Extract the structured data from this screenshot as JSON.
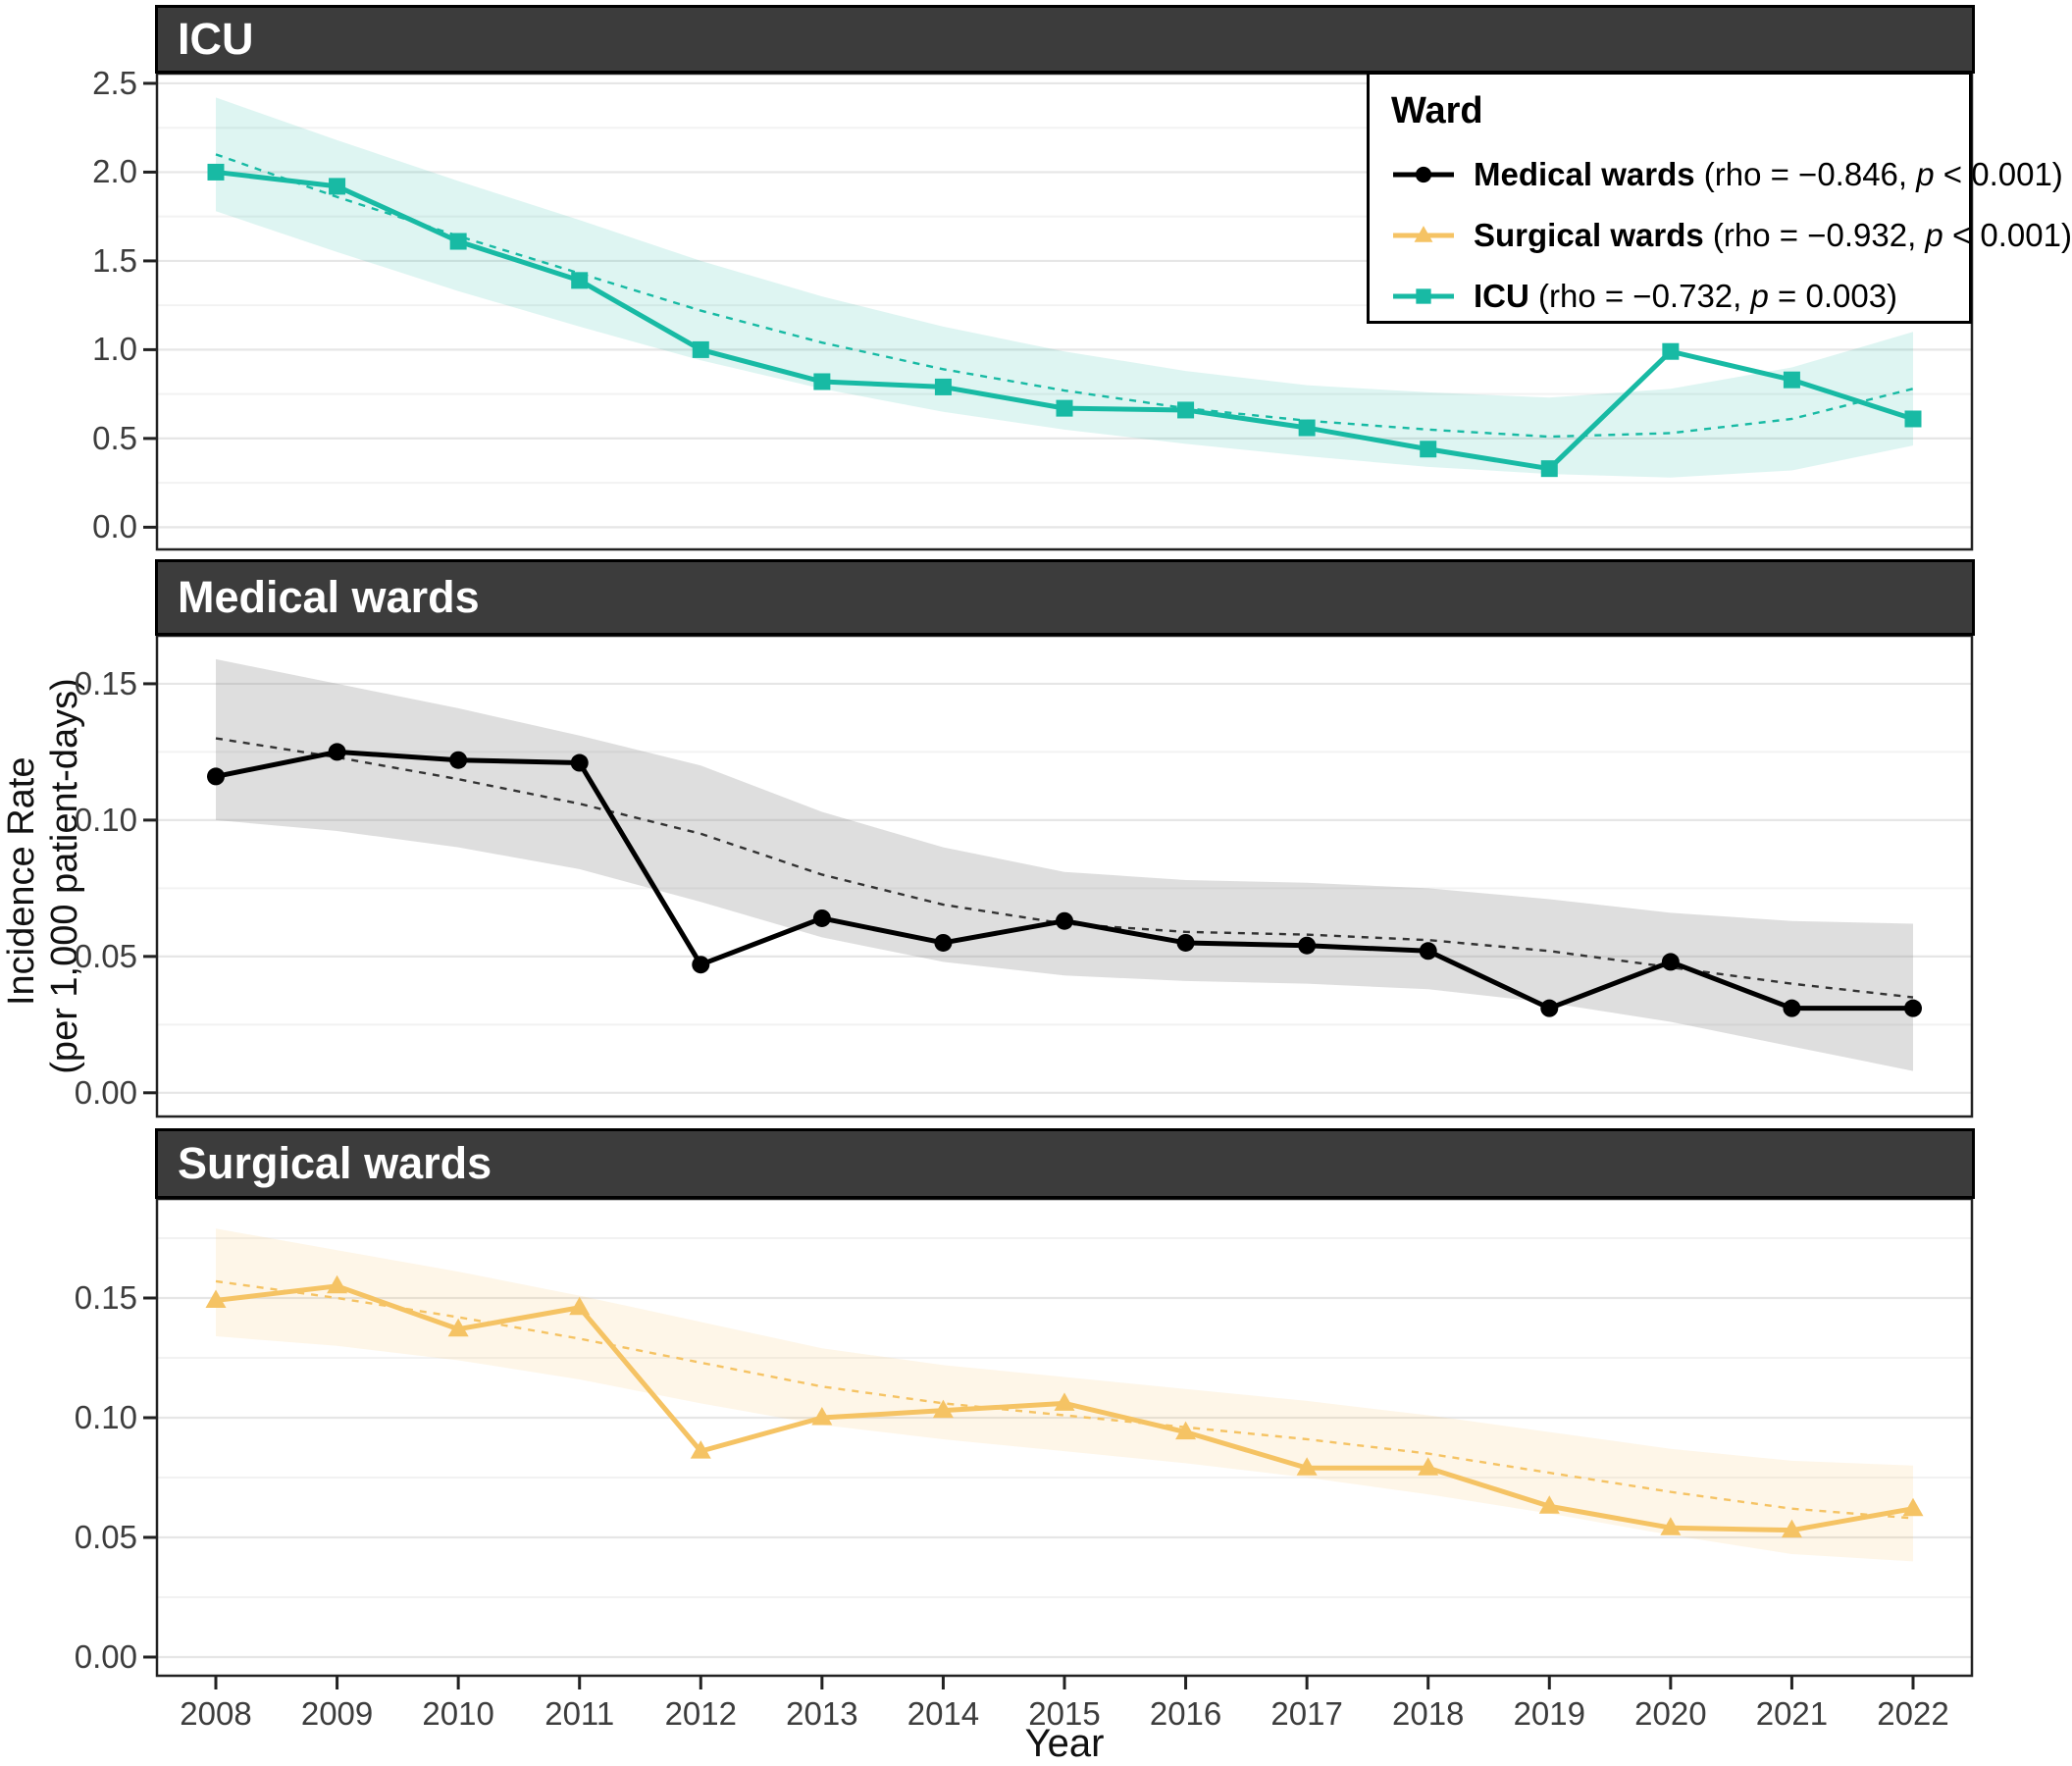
{
  "axis": {
    "x_label": "Year",
    "y_label_line1": "Incidence Rate",
    "y_label_line2": "(per 1,000 patient-days)"
  },
  "legend": {
    "title": "Ward",
    "items": [
      {
        "series_id": "medical",
        "label": "Medical wards",
        "pre": " (rho = −0.846, ",
        "p": "p",
        "post": " < 0.001)"
      },
      {
        "series_id": "surgical",
        "label": "Surgical wards",
        "pre": " (rho = −0.932, ",
        "p": "p",
        "post": " < 0.001)"
      },
      {
        "series_id": "icu",
        "label": "ICU",
        "pre": " (rho = −0.732, ",
        "p": "p",
        "post": " = 0.003)"
      }
    ]
  },
  "chart_data": [
    {
      "id": "icu",
      "type": "line",
      "title": "ICU",
      "color": "#18BAA4",
      "trend_color": "#18BAA4",
      "band_color": "#18BAA4",
      "band_opacity": 0.14,
      "marker": "square",
      "x": [
        2008,
        2009,
        2010,
        2011,
        2012,
        2013,
        2014,
        2015,
        2016,
        2017,
        2018,
        2019,
        2020,
        2021,
        2022
      ],
      "values": [
        2.0,
        1.92,
        1.61,
        1.39,
        1.0,
        0.82,
        0.79,
        0.67,
        0.66,
        0.56,
        0.44,
        0.33,
        0.99,
        0.83,
        0.61
      ],
      "trend": [
        2.1,
        1.86,
        1.64,
        1.43,
        1.22,
        1.04,
        0.89,
        0.77,
        0.67,
        0.6,
        0.55,
        0.51,
        0.53,
        0.61,
        0.78
      ],
      "band_upper": [
        2.42,
        2.18,
        1.95,
        1.73,
        1.5,
        1.3,
        1.13,
        0.99,
        0.88,
        0.8,
        0.76,
        0.73,
        0.78,
        0.9,
        1.1
      ],
      "band_lower": [
        1.78,
        1.55,
        1.33,
        1.13,
        0.94,
        0.78,
        0.65,
        0.55,
        0.47,
        0.4,
        0.34,
        0.3,
        0.28,
        0.32,
        0.46
      ],
      "ylim": [
        -0.125,
        2.555
      ],
      "ytick_values": [
        0.0,
        0.5,
        1.0,
        1.5,
        2.0,
        2.5
      ],
      "ytick_labels": [
        "0.0",
        "0.5",
        "1.0",
        "1.5",
        "2.0",
        "2.5"
      ],
      "minor_ticks": [
        0.25,
        0.75,
        1.25,
        1.75,
        2.25
      ],
      "grid": true,
      "legend_position": "top-right"
    },
    {
      "id": "medical",
      "type": "line",
      "title": "Medical wards",
      "color": "#000000",
      "trend_color": "#333333",
      "band_color": "#8A8A8A",
      "band_opacity": 0.28,
      "marker": "circle",
      "x": [
        2008,
        2009,
        2010,
        2011,
        2012,
        2013,
        2014,
        2015,
        2016,
        2017,
        2018,
        2019,
        2020,
        2021,
        2022
      ],
      "values": [
        0.116,
        0.125,
        0.122,
        0.121,
        0.047,
        0.064,
        0.055,
        0.063,
        0.055,
        0.054,
        0.052,
        0.031,
        0.048,
        0.031,
        0.031
      ],
      "trend": [
        0.13,
        0.123,
        0.115,
        0.106,
        0.095,
        0.08,
        0.069,
        0.062,
        0.059,
        0.058,
        0.056,
        0.052,
        0.046,
        0.04,
        0.035
      ],
      "band_upper": [
        0.159,
        0.15,
        0.141,
        0.131,
        0.12,
        0.103,
        0.09,
        0.081,
        0.078,
        0.077,
        0.075,
        0.071,
        0.066,
        0.063,
        0.062
      ],
      "band_lower": [
        0.1,
        0.096,
        0.09,
        0.082,
        0.07,
        0.057,
        0.048,
        0.043,
        0.041,
        0.04,
        0.038,
        0.033,
        0.026,
        0.017,
        0.008
      ],
      "ylim": [
        -0.0087,
        0.1676
      ],
      "ytick_values": [
        0.0,
        0.05,
        0.1,
        0.15
      ],
      "ytick_labels": [
        "0.00",
        "0.05",
        "0.10",
        "0.15"
      ],
      "minor_ticks": [
        0.025,
        0.075,
        0.125
      ],
      "grid": true
    },
    {
      "id": "surgical",
      "type": "line",
      "title": "Surgical wards",
      "color": "#F5C364",
      "trend_color": "#F5C364",
      "band_color": "#F5C364",
      "band_opacity": 0.15,
      "marker": "triangle",
      "x": [
        2008,
        2009,
        2010,
        2011,
        2012,
        2013,
        2014,
        2015,
        2016,
        2017,
        2018,
        2019,
        2020,
        2021,
        2022
      ],
      "values": [
        0.149,
        0.155,
        0.137,
        0.146,
        0.086,
        0.1,
        0.103,
        0.106,
        0.094,
        0.079,
        0.079,
        0.063,
        0.054,
        0.053,
        0.062
      ],
      "trend": [
        0.157,
        0.15,
        0.142,
        0.133,
        0.123,
        0.113,
        0.106,
        0.101,
        0.096,
        0.091,
        0.085,
        0.077,
        0.069,
        0.062,
        0.058
      ],
      "band_upper": [
        0.179,
        0.17,
        0.161,
        0.151,
        0.14,
        0.129,
        0.122,
        0.117,
        0.112,
        0.107,
        0.101,
        0.094,
        0.087,
        0.082,
        0.08
      ],
      "band_lower": [
        0.134,
        0.13,
        0.124,
        0.116,
        0.106,
        0.097,
        0.091,
        0.086,
        0.081,
        0.075,
        0.068,
        0.06,
        0.051,
        0.043,
        0.04
      ],
      "ylim": [
        -0.0078,
        0.1914
      ],
      "ytick_values": [
        0.0,
        0.05,
        0.1,
        0.15
      ],
      "ytick_labels": [
        "0.00",
        "0.05",
        "0.10",
        "0.15"
      ],
      "minor_ticks": [
        0.025,
        0.075,
        0.125,
        0.175
      ],
      "grid": true
    }
  ]
}
